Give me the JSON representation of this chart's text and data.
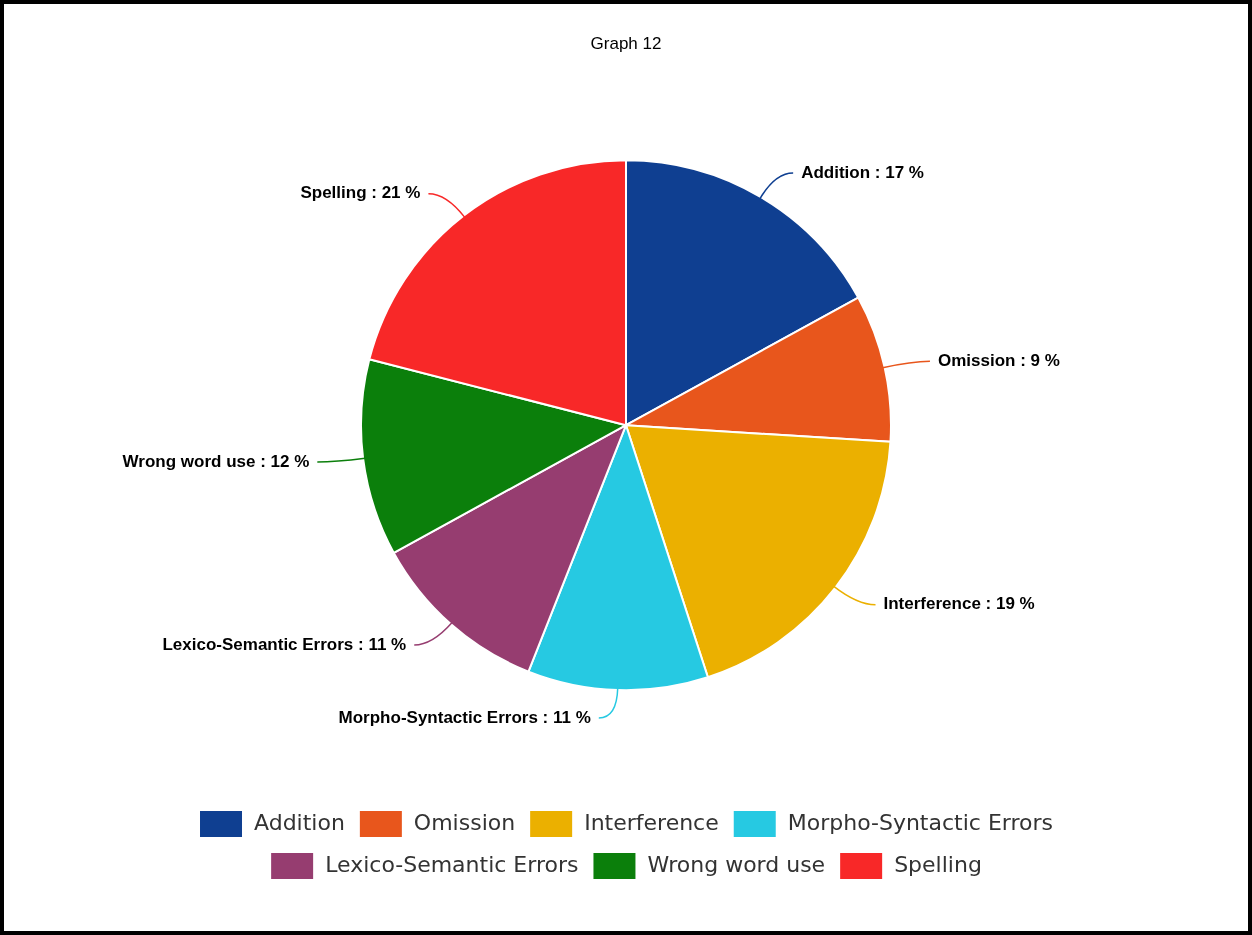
{
  "chart_data": {
    "type": "pie",
    "title": "Graph 12",
    "categories": [
      "Addition",
      "Omission",
      "Interference",
      "Morpho-Syntactic Errors",
      "Lexico-Semantic Errors",
      "Wrong word use",
      "Spelling"
    ],
    "values": [
      17,
      9,
      19,
      11,
      11,
      12,
      21
    ],
    "colors": [
      "#0f3f91",
      "#e8561c",
      "#ebb000",
      "#26c9e2",
      "#963d70",
      "#0b7f0b",
      "#f82828"
    ],
    "value_labels": [
      ": 17 %",
      ": 9 %",
      ": 19 %",
      ": 11 %",
      ": 11 %",
      ": 12 %",
      ": 21 %"
    ],
    "legend": "bottom"
  }
}
